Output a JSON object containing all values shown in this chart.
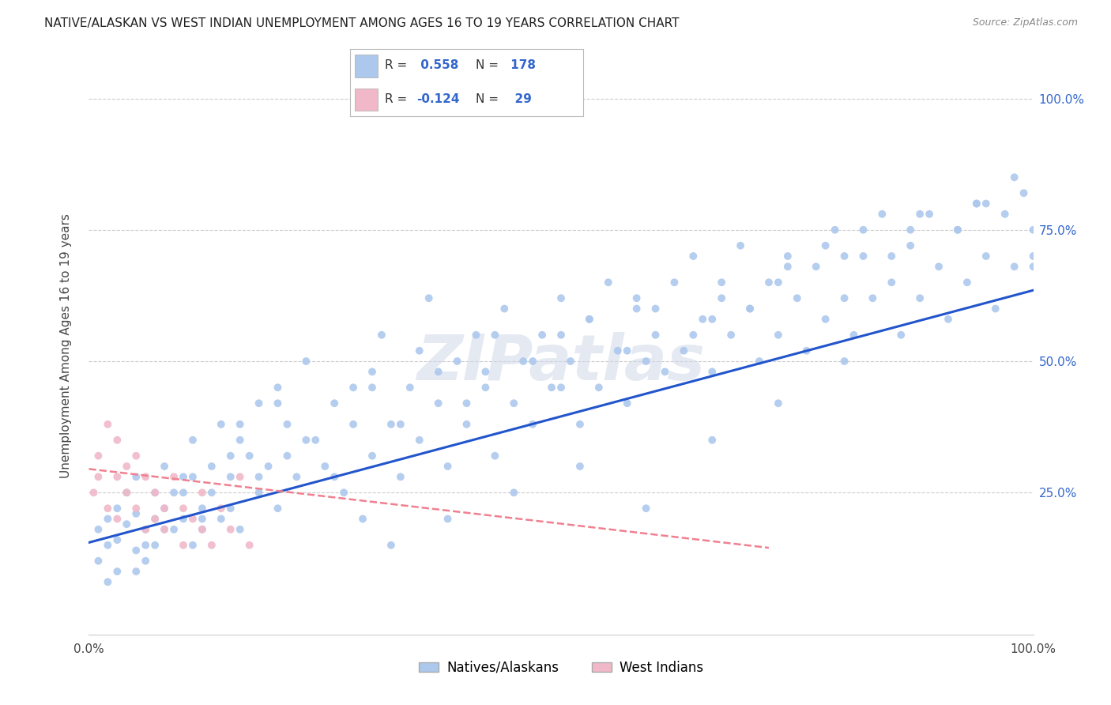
{
  "title": "NATIVE/ALASKAN VS WEST INDIAN UNEMPLOYMENT AMONG AGES 16 TO 19 YEARS CORRELATION CHART",
  "source": "Source: ZipAtlas.com",
  "ylabel": "Unemployment Among Ages 16 to 19 years",
  "xlim": [
    0.0,
    1.0
  ],
  "ylim": [
    -0.02,
    1.08
  ],
  "x_tick_labels": [
    "0.0%",
    "",
    "",
    "",
    "100.0%"
  ],
  "x_tick_positions": [
    0.0,
    0.25,
    0.5,
    0.75,
    1.0
  ],
  "y_tick_labels": [
    "25.0%",
    "50.0%",
    "75.0%",
    "100.0%"
  ],
  "y_tick_positions": [
    0.25,
    0.5,
    0.75,
    1.0
  ],
  "native_color": "#adc8ed",
  "west_indian_color": "#f0b8c8",
  "native_line_color": "#2255cc",
  "west_indian_line_color": "#f08090",
  "R_native": 0.558,
  "N_native": 178,
  "R_west": -0.124,
  "N_west": 29,
  "legend_label_native": "Natives/Alaskans",
  "legend_label_west": "West Indians",
  "watermark": "ZIPatlas",
  "background_color": "#ffffff",
  "native_trend_x0": 0.0,
  "native_trend_y0": 0.155,
  "native_trend_x1": 1.0,
  "native_trend_y1": 0.635,
  "west_trend_x0": 0.0,
  "west_trend_y0": 0.295,
  "west_trend_x1": 0.72,
  "west_trend_y1": 0.145,
  "native_scatter_x": [
    0.01,
    0.01,
    0.02,
    0.02,
    0.02,
    0.03,
    0.03,
    0.03,
    0.04,
    0.04,
    0.05,
    0.05,
    0.05,
    0.06,
    0.06,
    0.07,
    0.07,
    0.07,
    0.08,
    0.08,
    0.09,
    0.09,
    0.1,
    0.1,
    0.11,
    0.11,
    0.12,
    0.12,
    0.13,
    0.13,
    0.14,
    0.14,
    0.15,
    0.15,
    0.16,
    0.16,
    0.17,
    0.18,
    0.18,
    0.19,
    0.2,
    0.2,
    0.21,
    0.22,
    0.23,
    0.24,
    0.25,
    0.26,
    0.27,
    0.28,
    0.29,
    0.3,
    0.3,
    0.31,
    0.32,
    0.33,
    0.34,
    0.35,
    0.36,
    0.37,
    0.38,
    0.39,
    0.4,
    0.41,
    0.42,
    0.43,
    0.44,
    0.45,
    0.46,
    0.47,
    0.48,
    0.49,
    0.5,
    0.51,
    0.52,
    0.53,
    0.54,
    0.55,
    0.56,
    0.57,
    0.58,
    0.59,
    0.6,
    0.61,
    0.62,
    0.63,
    0.64,
    0.65,
    0.66,
    0.67,
    0.68,
    0.69,
    0.7,
    0.71,
    0.72,
    0.73,
    0.74,
    0.75,
    0.76,
    0.77,
    0.78,
    0.79,
    0.8,
    0.81,
    0.82,
    0.83,
    0.84,
    0.85,
    0.86,
    0.87,
    0.88,
    0.89,
    0.9,
    0.91,
    0.92,
    0.93,
    0.94,
    0.95,
    0.96,
    0.97,
    0.98,
    0.99,
    1.0,
    1.0,
    1.0,
    0.05,
    0.08,
    0.1,
    0.12,
    0.15,
    0.18,
    0.2,
    0.23,
    0.26,
    0.3,
    0.33,
    0.37,
    0.4,
    0.43,
    0.47,
    0.5,
    0.53,
    0.57,
    0.6,
    0.64,
    0.67,
    0.7,
    0.74,
    0.78,
    0.82,
    0.85,
    0.88,
    0.92,
    0.95,
    0.98,
    0.06,
    0.11,
    0.16,
    0.21,
    0.28,
    0.35,
    0.42,
    0.5,
    0.58,
    0.66,
    0.73,
    0.8,
    0.87,
    0.94,
    0.32,
    0.38,
    0.45,
    0.52,
    0.59,
    0.66,
    0.73,
    0.8
  ],
  "native_scatter_y": [
    0.18,
    0.12,
    0.2,
    0.15,
    0.08,
    0.22,
    0.16,
    0.1,
    0.19,
    0.25,
    0.14,
    0.21,
    0.28,
    0.18,
    0.12,
    0.25,
    0.2,
    0.15,
    0.22,
    0.3,
    0.18,
    0.25,
    0.28,
    0.2,
    0.15,
    0.35,
    0.22,
    0.18,
    0.3,
    0.25,
    0.2,
    0.38,
    0.28,
    0.22,
    0.35,
    0.18,
    0.32,
    0.42,
    0.25,
    0.3,
    0.22,
    0.45,
    0.38,
    0.28,
    0.5,
    0.35,
    0.3,
    0.42,
    0.25,
    0.38,
    0.2,
    0.48,
    0.32,
    0.55,
    0.38,
    0.28,
    0.45,
    0.35,
    0.62,
    0.42,
    0.3,
    0.5,
    0.38,
    0.55,
    0.45,
    0.32,
    0.6,
    0.42,
    0.5,
    0.38,
    0.55,
    0.45,
    0.62,
    0.5,
    0.38,
    0.58,
    0.45,
    0.65,
    0.52,
    0.42,
    0.6,
    0.5,
    0.55,
    0.48,
    0.65,
    0.52,
    0.7,
    0.58,
    0.48,
    0.62,
    0.55,
    0.72,
    0.6,
    0.5,
    0.65,
    0.55,
    0.7,
    0.62,
    0.52,
    0.68,
    0.58,
    0.75,
    0.62,
    0.55,
    0.7,
    0.62,
    0.78,
    0.65,
    0.55,
    0.72,
    0.62,
    0.78,
    0.68,
    0.58,
    0.75,
    0.65,
    0.8,
    0.7,
    0.6,
    0.78,
    0.68,
    0.82,
    0.75,
    0.7,
    0.68,
    0.1,
    0.18,
    0.25,
    0.2,
    0.32,
    0.28,
    0.42,
    0.35,
    0.28,
    0.45,
    0.38,
    0.48,
    0.42,
    0.55,
    0.5,
    0.45,
    0.58,
    0.52,
    0.6,
    0.55,
    0.65,
    0.6,
    0.68,
    0.72,
    0.75,
    0.7,
    0.78,
    0.75,
    0.8,
    0.85,
    0.15,
    0.28,
    0.38,
    0.32,
    0.45,
    0.52,
    0.48,
    0.55,
    0.62,
    0.58,
    0.65,
    0.7,
    0.75,
    0.8,
    0.15,
    0.2,
    0.25,
    0.3,
    0.22,
    0.35,
    0.42,
    0.5
  ],
  "west_scatter_x": [
    0.005,
    0.01,
    0.01,
    0.02,
    0.02,
    0.03,
    0.03,
    0.03,
    0.04,
    0.04,
    0.05,
    0.05,
    0.06,
    0.06,
    0.07,
    0.07,
    0.08,
    0.08,
    0.09,
    0.1,
    0.1,
    0.11,
    0.12,
    0.12,
    0.13,
    0.14,
    0.15,
    0.16,
    0.17
  ],
  "west_scatter_y": [
    0.25,
    0.32,
    0.28,
    0.38,
    0.22,
    0.35,
    0.28,
    0.2,
    0.3,
    0.25,
    0.22,
    0.32,
    0.18,
    0.28,
    0.25,
    0.2,
    0.22,
    0.18,
    0.28,
    0.15,
    0.22,
    0.2,
    0.18,
    0.25,
    0.15,
    0.22,
    0.18,
    0.28,
    0.15
  ]
}
